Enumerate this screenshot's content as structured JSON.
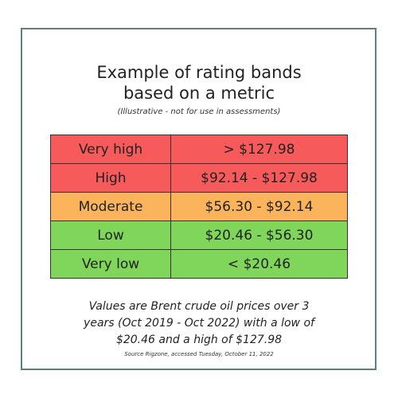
{
  "title_line1": "Example of rating bands",
  "title_line2": "based on a metric",
  "subtitle": "(Illustrative - not for use in assessments)",
  "bands": [
    {
      "label": "Very high",
      "range": "> $127.98",
      "color": "#f65a5a"
    },
    {
      "label": "High",
      "range": "$92.14 - $127.98",
      "color": "#f65a5a"
    },
    {
      "label": "Moderate",
      "range": "$56.30 - $92.14",
      "color": "#fbb45c"
    },
    {
      "label": "Low",
      "range": "$20.46 - $56.30",
      "color": "#7fd65a"
    },
    {
      "label": "Very low",
      "range": "< $20.46",
      "color": "#7fd65a"
    }
  ],
  "caption_line1": "Values are Brent crude oil prices over 3",
  "caption_line2": "years (Oct 2019 - Oct 2022) with a low of",
  "caption_line3": "$20.46 and a high of $127.98",
  "source": "Source Rigzone, accessed Tuesday, October 11, 2022",
  "colors": {
    "frame": "#5f7f7f",
    "table_border": "#333333"
  }
}
